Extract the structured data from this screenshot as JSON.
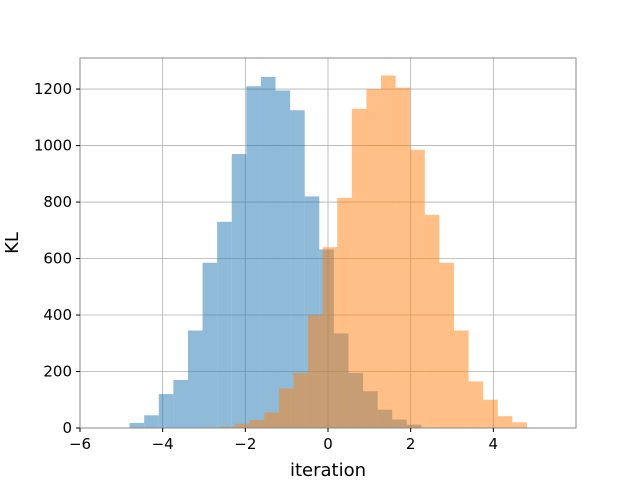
{
  "chart_data": {
    "type": "histogram",
    "xlabel": "iteration",
    "ylabel": "KL",
    "xlim": [
      -6,
      6
    ],
    "ylim": [
      0,
      1310
    ],
    "grid": true,
    "x_ticks": [
      -6,
      -4,
      -2,
      0,
      2,
      4
    ],
    "y_ticks": [
      0,
      200,
      400,
      600,
      800,
      1000,
      1200
    ],
    "series": [
      {
        "color": "#1f77b4",
        "opacity": 0.5,
        "bin_width": 0.353,
        "bin_start": -4.8,
        "counts": [
          18,
          45,
          120,
          170,
          345,
          585,
          730,
          970,
          1210,
          1243,
          1195,
          1125,
          820,
          632,
          335,
          195,
          130,
          65,
          30,
          12
        ]
      },
      {
        "color": "#ff7f0e",
        "opacity": 0.5,
        "bin_width": 0.353,
        "bin_start": -2.6,
        "counts": [
          5,
          15,
          28,
          55,
          140,
          195,
          400,
          640,
          815,
          1130,
          1200,
          1248,
          1205,
          985,
          755,
          585,
          345,
          165,
          100,
          42,
          20
        ]
      }
    ]
  }
}
